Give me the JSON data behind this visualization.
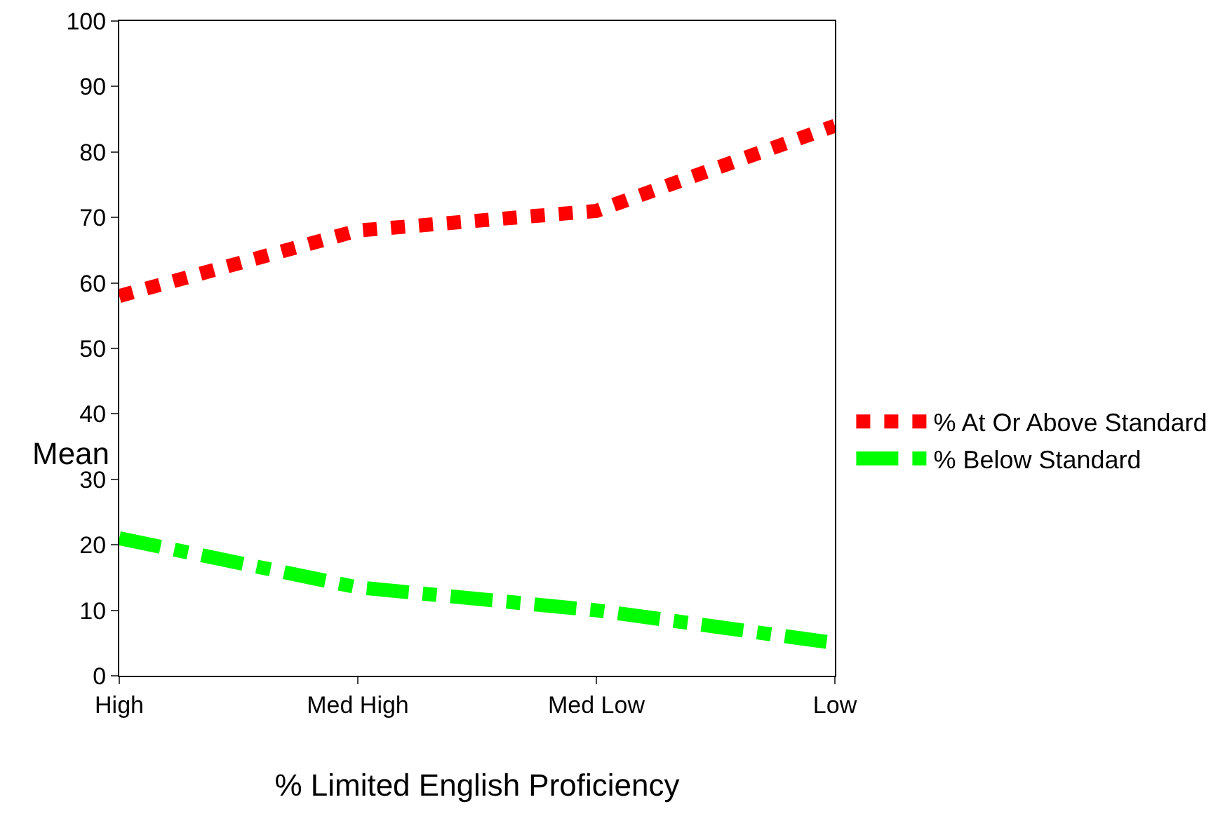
{
  "chart_data": {
    "type": "line",
    "xlabel": "% Limited English Proficiency",
    "ylabel": "Mean",
    "categories": [
      "High",
      "Med High",
      "Med Low",
      "Low"
    ],
    "series": [
      {
        "name": "% At Or Above Standard",
        "color": "#ff0000",
        "line_style": "dotted",
        "values": [
          58,
          68,
          71,
          84
        ]
      },
      {
        "name": "% Below Standard",
        "color": "#00ff00",
        "line_style": "dashdot",
        "values": [
          21,
          13.5,
          10,
          5
        ]
      }
    ],
    "ylim": [
      0,
      100
    ],
    "yticks": [
      0,
      10,
      20,
      30,
      40,
      50,
      60,
      70,
      80,
      90,
      100
    ],
    "grid": false,
    "legend": "right",
    "marker": "none"
  }
}
